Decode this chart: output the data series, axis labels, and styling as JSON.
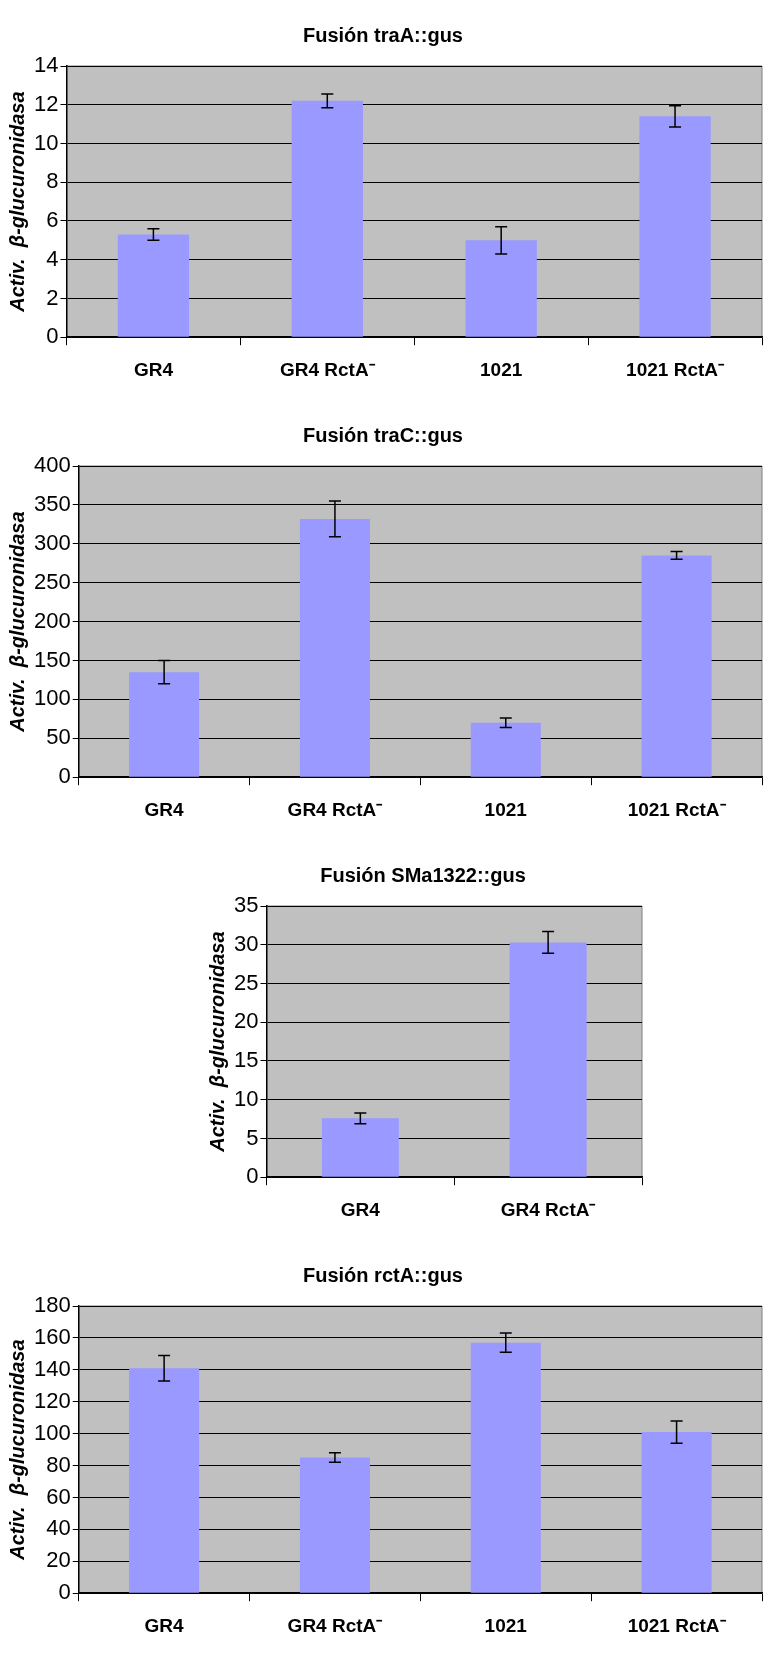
{
  "chart_data": [
    {
      "type": "bar",
      "title": "Fusión traA::gus",
      "ylabel": "Activ.  β-glucuronidasa",
      "categories": [
        "GR4",
        "GR4 RctA⁻",
        "1021",
        "1021 RctA⁻"
      ],
      "values": [
        5.3,
        12.2,
        5.0,
        11.4
      ],
      "errors": [
        0.3,
        0.35,
        0.7,
        0.55
      ],
      "color": "#9999ff",
      "ylim": [
        0,
        14
      ],
      "yticks": [
        0,
        2,
        4,
        6,
        8,
        10,
        12,
        14
      ],
      "grid": "y"
    },
    {
      "type": "bar",
      "title": "Fusión traC::gus",
      "ylabel": "Activ.  β-glucuronidasa",
      "categories": [
        "GR4",
        "GR4 RctA⁻",
        "1021",
        "1021 RctA⁻"
      ],
      "values": [
        135,
        332,
        70,
        285
      ],
      "errors": [
        15,
        23,
        6,
        5
      ],
      "color": "#9999ff",
      "ylim": [
        0,
        400
      ],
      "yticks": [
        0,
        50,
        100,
        150,
        200,
        250,
        300,
        350,
        400
      ],
      "grid": "y"
    },
    {
      "type": "bar",
      "title": "Fusión SMa1322::gus",
      "ylabel": "Activ.  β-glucuronidasa",
      "categories": [
        "GR4",
        "GR4 RctA⁻"
      ],
      "values": [
        7.6,
        30.3
      ],
      "errors": [
        0.7,
        1.4
      ],
      "color": "#9999ff",
      "ylim": [
        0,
        35
      ],
      "yticks": [
        0,
        5,
        10,
        15,
        20,
        25,
        30,
        35
      ],
      "grid": "y"
    },
    {
      "type": "bar",
      "title": "Fusión rctA::gus",
      "ylabel": "Activ.  β-glucuronidasa",
      "categories": [
        "GR4",
        "GR4 RctA⁻",
        "1021",
        "1021 RctA⁻"
      ],
      "values": [
        141,
        85,
        157,
        101
      ],
      "errors": [
        8,
        3,
        6,
        7
      ],
      "color": "#9999ff",
      "ylim": [
        0,
        180
      ],
      "yticks": [
        0,
        20,
        40,
        60,
        80,
        100,
        120,
        140,
        160,
        180
      ],
      "grid": "y"
    }
  ]
}
